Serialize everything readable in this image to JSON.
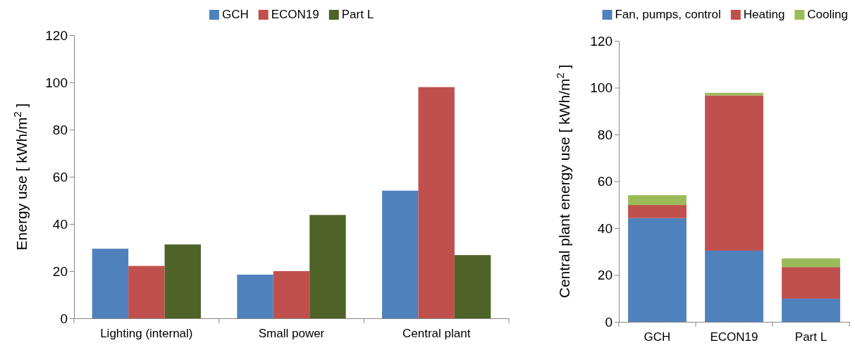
{
  "chart_data": [
    {
      "type": "bar",
      "ylabel": "Energy use [ kWh/m$^{2}$ ]",
      "categories": [
        "Lighting (internal)",
        "Small power",
        "Central plant"
      ],
      "series": [
        {
          "name": "GCH",
          "color": "#4f81bd",
          "values": [
            29.5,
            18.5,
            54.1
          ]
        },
        {
          "name": "ECON19",
          "color": "#c0504d",
          "values": [
            22.2,
            20.0,
            98.0
          ]
        },
        {
          "name": "Part L",
          "color": "#4f6228",
          "values": [
            31.3,
            43.8,
            26.8
          ]
        }
      ],
      "ylim": [
        0,
        120
      ],
      "yticks": [
        0,
        20,
        40,
        60,
        80,
        100,
        120
      ],
      "legend": "top",
      "grid": false
    },
    {
      "type": "bar",
      "stacked": true,
      "ylabel": "Central plant energy use [ kWh/m$^{2}$ ]",
      "categories": [
        "GCH",
        "ECON19",
        "Part L"
      ],
      "series": [
        {
          "name": "Fan, pumps, control",
          "color": "#4f81bd",
          "values": [
            44.3,
            30.4,
            9.9
          ]
        },
        {
          "name": "Heating",
          "color": "#c0504d",
          "values": [
            5.6,
            66.3,
            13.5
          ]
        },
        {
          "name": "Cooling",
          "color": "#9bbb59",
          "values": [
            4.2,
            1.1,
            3.7
          ]
        }
      ],
      "ylim": [
        0,
        120
      ],
      "yticks": [
        0,
        20,
        40,
        60,
        80,
        100,
        120
      ],
      "legend": "top",
      "grid": false
    }
  ]
}
